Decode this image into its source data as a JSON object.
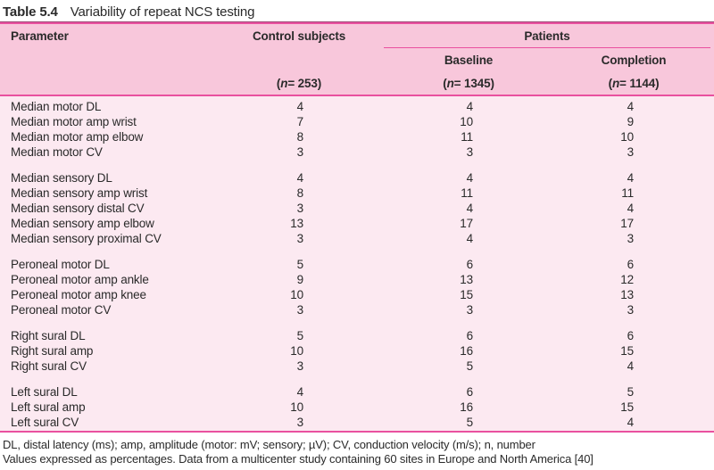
{
  "title": {
    "label": "Table 5.4",
    "text": "Variability of repeat NCS testing"
  },
  "table": {
    "columns": {
      "parameter": "Parameter",
      "control": "Control subjects",
      "patients": "Patients",
      "baseline": "Baseline",
      "completion": "Completion"
    },
    "n_labels": {
      "control": "(n = 253)",
      "baseline": "(n = 1345)",
      "completion": "(n = 1144)"
    },
    "groups": [
      {
        "rows": [
          {
            "label": "Median motor DL",
            "values": [
              "4",
              "4",
              "4"
            ]
          },
          {
            "label": "Median motor amp wrist",
            "values": [
              "7",
              "10",
              "9"
            ]
          },
          {
            "label": "Median motor amp elbow",
            "values": [
              "8",
              "11",
              "10"
            ]
          },
          {
            "label": "Median motor CV",
            "values": [
              "3",
              "3",
              "3"
            ]
          }
        ]
      },
      {
        "rows": [
          {
            "label": "Median sensory DL",
            "values": [
              "4",
              "4",
              "4"
            ]
          },
          {
            "label": "Median sensory amp wrist",
            "values": [
              "8",
              "11",
              "11"
            ]
          },
          {
            "label": "Median sensory distal CV",
            "values": [
              "3",
              "4",
              "4"
            ]
          },
          {
            "label": "Median sensory amp elbow",
            "values": [
              "13",
              "17",
              "17"
            ]
          },
          {
            "label": "Median sensory proximal CV",
            "values": [
              "3",
              "4",
              "3"
            ]
          }
        ]
      },
      {
        "rows": [
          {
            "label": "Peroneal motor DL",
            "values": [
              "5",
              "6",
              "6"
            ]
          },
          {
            "label": "Peroneal motor amp ankle",
            "values": [
              "9",
              "13",
              "12"
            ]
          },
          {
            "label": "Peroneal motor amp knee",
            "values": [
              "10",
              "15",
              "13"
            ]
          },
          {
            "label": "Peroneal motor CV",
            "values": [
              "3",
              "3",
              "3"
            ]
          }
        ]
      },
      {
        "rows": [
          {
            "label": "Right sural DL",
            "values": [
              "5",
              "6",
              "6"
            ]
          },
          {
            "label": "Right sural amp",
            "values": [
              "10",
              "16",
              "15"
            ]
          },
          {
            "label": "Right sural CV",
            "values": [
              "3",
              "5",
              "4"
            ]
          }
        ]
      },
      {
        "rows": [
          {
            "label": "Left sural DL",
            "values": [
              "4",
              "6",
              "5"
            ]
          },
          {
            "label": "Left sural amp",
            "values": [
              "10",
              "16",
              "15"
            ]
          },
          {
            "label": "Left sural CV",
            "values": [
              "3",
              "5",
              "4"
            ]
          }
        ]
      }
    ]
  },
  "footnotes": [
    "DL, distal latency (ms); amp, amplitude (motor: mV; sensory; µV); CV, conduction velocity (m/s); n, number",
    "Values expressed as percentages. Data from a multicenter study containing 60 sites in Europe and North America [40]"
  ],
  "colors": {
    "header_bg": "#f8c7db",
    "body_bg": "#fce9f1",
    "rule": "#e9509f",
    "rule_dark": "#9c4a74",
    "text": "#2a2a2a"
  }
}
